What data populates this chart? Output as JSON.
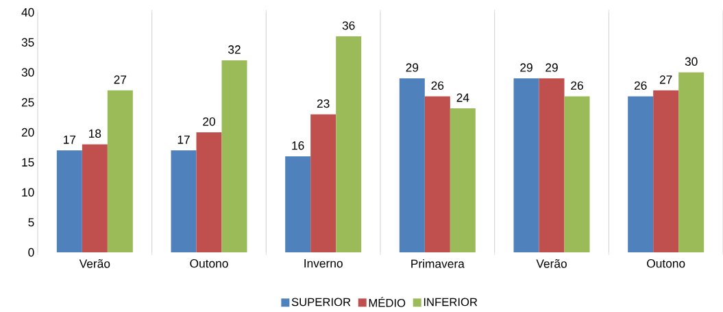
{
  "chart_data": {
    "type": "bar",
    "categories": [
      "Verão",
      "Outono",
      "Inverno",
      "Primavera",
      "Verão",
      "Outono"
    ],
    "series": [
      {
        "name": "SUPERIOR",
        "color": "#4f81bd",
        "values": [
          17,
          17,
          16,
          29,
          29,
          26
        ]
      },
      {
        "name": "MÉDIO",
        "color": "#c0504d",
        "values": [
          18,
          20,
          23,
          26,
          29,
          27
        ]
      },
      {
        "name": "INFERIOR",
        "color": "#9bbb59",
        "values": [
          27,
          32,
          36,
          24,
          26,
          30
        ]
      }
    ],
    "ylim": [
      0,
      40
    ],
    "yticks": [
      0,
      5,
      10,
      15,
      20,
      25,
      30,
      35,
      40
    ],
    "grid": "x",
    "legend": "bottom",
    "data_labels": true
  }
}
